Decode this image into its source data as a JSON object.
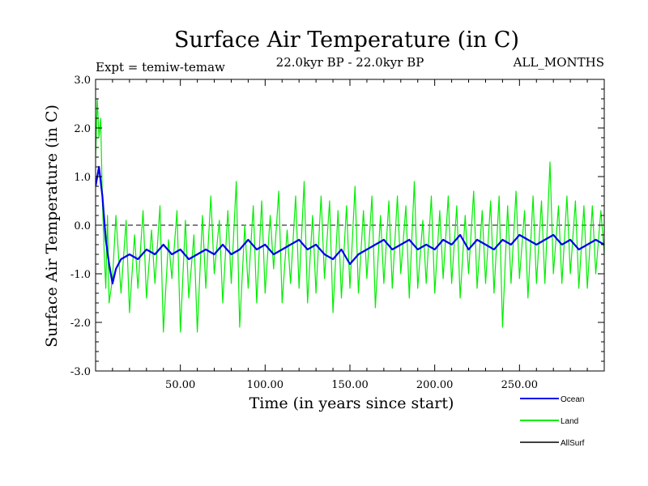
{
  "chart_data": {
    "type": "line",
    "title": "Surface Air Temperature (in C)",
    "subtitle": "22.0kyr BP - 22.0kyr BP",
    "left_label": "Expt = temiw-temaw",
    "right_label": "ALL_MONTHS",
    "xlabel": "Time (in years since start)",
    "ylabel": "Surface Air Temperature (in C)",
    "xlim": [
      0,
      300
    ],
    "ylim": [
      -3.0,
      3.0
    ],
    "xticks": [
      50,
      100,
      150,
      200,
      250
    ],
    "xtick_labels": [
      "50.00",
      "100.00",
      "150.00",
      "200.00",
      "250.00"
    ],
    "yticks": [
      -3.0,
      -2.0,
      -1.0,
      0.0,
      1.0,
      2.0,
      3.0
    ],
    "ytick_labels": [
      "-3.0",
      "-2.0",
      "-1.0",
      "0.0",
      "1.0",
      "2.0",
      "3.0"
    ],
    "reference_line": {
      "y": 0.0,
      "style": "dashed"
    },
    "legend_position": "bottom-right",
    "series": [
      {
        "name": "Ocean",
        "color": "#0000ee",
        "x": [
          0,
          2,
          4,
          6,
          8,
          10,
          12,
          15,
          20,
          25,
          30,
          35,
          40,
          45,
          50,
          55,
          60,
          65,
          70,
          75,
          80,
          85,
          90,
          95,
          100,
          105,
          110,
          115,
          120,
          125,
          130,
          135,
          140,
          145,
          150,
          155,
          160,
          165,
          170,
          175,
          180,
          185,
          190,
          195,
          200,
          205,
          210,
          215,
          220,
          225,
          230,
          235,
          240,
          245,
          250,
          255,
          260,
          265,
          270,
          275,
          280,
          285,
          290,
          295,
          300
        ],
        "values": [
          0.8,
          1.2,
          0.6,
          -0.3,
          -0.8,
          -1.2,
          -0.9,
          -0.7,
          -0.6,
          -0.7,
          -0.5,
          -0.6,
          -0.4,
          -0.6,
          -0.5,
          -0.7,
          -0.6,
          -0.5,
          -0.6,
          -0.4,
          -0.6,
          -0.5,
          -0.3,
          -0.5,
          -0.4,
          -0.6,
          -0.5,
          -0.4,
          -0.3,
          -0.5,
          -0.4,
          -0.6,
          -0.7,
          -0.5,
          -0.8,
          -0.6,
          -0.5,
          -0.4,
          -0.3,
          -0.5,
          -0.4,
          -0.3,
          -0.5,
          -0.4,
          -0.5,
          -0.3,
          -0.4,
          -0.2,
          -0.5,
          -0.3,
          -0.4,
          -0.5,
          -0.3,
          -0.4,
          -0.2,
          -0.3,
          -0.4,
          -0.3,
          -0.2,
          -0.4,
          -0.3,
          -0.5,
          -0.4,
          -0.3,
          -0.4
        ]
      },
      {
        "name": "Land",
        "color": "#00ee00",
        "x": [
          0,
          1,
          2,
          3,
          4,
          5,
          6,
          7,
          8,
          10,
          12,
          15,
          18,
          20,
          23,
          25,
          28,
          30,
          33,
          35,
          38,
          40,
          43,
          45,
          48,
          50,
          53,
          55,
          58,
          60,
          63,
          65,
          68,
          70,
          73,
          75,
          78,
          80,
          83,
          85,
          88,
          90,
          93,
          95,
          98,
          100,
          103,
          105,
          108,
          110,
          113,
          115,
          118,
          120,
          123,
          125,
          128,
          130,
          133,
          135,
          138,
          140,
          143,
          145,
          148,
          150,
          153,
          155,
          158,
          160,
          163,
          165,
          168,
          170,
          173,
          175,
          178,
          180,
          183,
          185,
          188,
          190,
          193,
          195,
          198,
          200,
          203,
          205,
          208,
          210,
          213,
          215,
          218,
          220,
          223,
          225,
          228,
          230,
          233,
          235,
          238,
          240,
          243,
          245,
          248,
          250,
          253,
          255,
          258,
          260,
          263,
          265,
          268,
          270,
          273,
          275,
          278,
          280,
          283,
          285,
          288,
          290,
          293,
          295,
          298,
          300
        ],
        "values": [
          1.4,
          2.6,
          1.8,
          2.2,
          0.5,
          -0.5,
          -1.3,
          0.2,
          -1.6,
          -1.1,
          0.2,
          -1.4,
          0.1,
          -1.8,
          -0.2,
          -1.3,
          0.3,
          -1.5,
          -0.1,
          -1.2,
          0.4,
          -2.2,
          -0.3,
          -1.1,
          0.3,
          -2.2,
          0.1,
          -1.5,
          -0.2,
          -2.2,
          0.2,
          -1.3,
          0.6,
          -1.0,
          0.1,
          -1.6,
          0.3,
          -1.2,
          0.9,
          -2.1,
          0.0,
          -1.3,
          0.4,
          -1.6,
          0.5,
          -1.4,
          0.2,
          -0.9,
          0.7,
          -1.6,
          -0.1,
          -1.2,
          0.6,
          -1.3,
          0.9,
          -1.6,
          0.2,
          -1.4,
          0.6,
          -1.1,
          0.5,
          -1.8,
          0.3,
          -1.5,
          0.4,
          -1.3,
          0.8,
          -1.4,
          0.3,
          -1.1,
          0.6,
          -1.7,
          0.2,
          -1.2,
          0.5,
          -1.3,
          0.6,
          -1.0,
          0.4,
          -1.5,
          0.9,
          -1.3,
          0.1,
          -1.2,
          0.6,
          -1.4,
          0.3,
          -1.1,
          0.6,
          -1.2,
          0.4,
          -1.5,
          0.2,
          -1.0,
          0.7,
          -1.3,
          0.3,
          -1.2,
          0.5,
          -1.4,
          0.6,
          -2.1,
          0.4,
          -1.2,
          0.7,
          -1.1,
          0.3,
          -1.5,
          0.6,
          -1.2,
          0.5,
          -1.2,
          1.3,
          -1.0,
          0.4,
          -1.2,
          0.6,
          -1.0,
          0.5,
          -1.3,
          0.4,
          -1.3,
          0.4,
          -1.0,
          0.3,
          -0.6
        ]
      },
      {
        "name": "AllSurf",
        "color": "#000000",
        "x": [],
        "values": []
      }
    ]
  }
}
